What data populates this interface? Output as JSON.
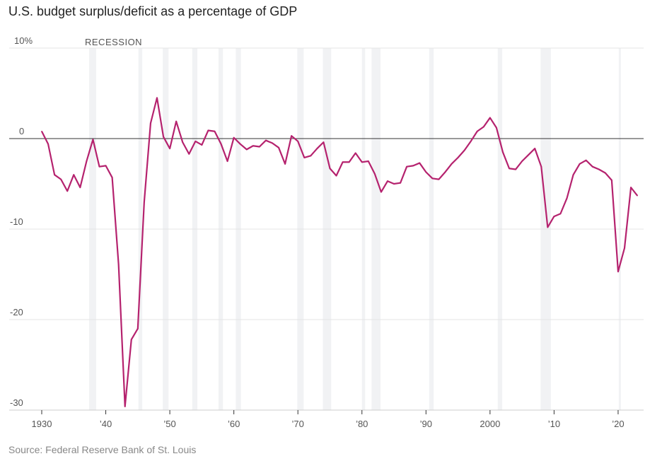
{
  "chart_data": {
    "type": "line",
    "title": "U.S. budget surplus/deficit as a percentage of GDP",
    "source": "Source: Federal Reserve Bank of St. Louis",
    "xlabel": "",
    "ylabel": "",
    "ylim": [
      -30,
      10
    ],
    "xlim": [
      1930,
      2023
    ],
    "y_ticks": [
      {
        "v": 10,
        "label": "10%"
      },
      {
        "v": 0,
        "label": "0"
      },
      {
        "v": -10,
        "label": "-10"
      },
      {
        "v": -20,
        "label": "-20"
      },
      {
        "v": -30,
        "label": "-30"
      }
    ],
    "x_ticks": [
      {
        "v": 1930,
        "label": "1930"
      },
      {
        "v": 1940,
        "label": "’40"
      },
      {
        "v": 1950,
        "label": "’50"
      },
      {
        "v": 1960,
        "label": "’60"
      },
      {
        "v": 1970,
        "label": "’70"
      },
      {
        "v": 1980,
        "label": "’80"
      },
      {
        "v": 1990,
        "label": "’90"
      },
      {
        "v": 2000,
        "label": "2000"
      },
      {
        "v": 2010,
        "label": "’10"
      },
      {
        "v": 2020,
        "label": "’20"
      }
    ],
    "recession_label": "RECESSION",
    "recessions": [
      [
        1937.4,
        1938.5
      ],
      [
        1945.1,
        1945.7
      ],
      [
        1948.9,
        1949.8
      ],
      [
        1953.5,
        1954.3
      ],
      [
        1957.6,
        1958.3
      ],
      [
        1960.3,
        1961.1
      ],
      [
        1969.9,
        1970.9
      ],
      [
        1973.9,
        1975.2
      ],
      [
        1980.0,
        1980.5
      ],
      [
        1981.5,
        1982.9
      ],
      [
        1990.5,
        1991.2
      ],
      [
        2001.2,
        2001.9
      ],
      [
        2007.9,
        2009.5
      ],
      [
        2020.1,
        2020.3
      ]
    ],
    "series": [
      {
        "name": "Surplus/deficit % of GDP",
        "color": "#b5226e",
        "start_year": 1930,
        "values": [
          0.8,
          -0.6,
          -4.0,
          -4.5,
          -5.8,
          -4.0,
          -5.4,
          -2.5,
          -0.1,
          -3.1,
          -3.0,
          -4.3,
          -13.9,
          -29.6,
          -22.2,
          -21.0,
          -7.0,
          1.7,
          4.5,
          0.2,
          -1.1,
          1.9,
          -0.4,
          -1.7,
          -0.3,
          -0.7,
          0.9,
          0.8,
          -0.6,
          -2.5,
          0.1,
          -0.6,
          -1.2,
          -0.8,
          -0.9,
          -0.2,
          -0.5,
          -1.0,
          -2.8,
          0.3,
          -0.3,
          -2.1,
          -1.9,
          -1.1,
          -0.4,
          -3.3,
          -4.1,
          -2.6,
          -2.6,
          -1.6,
          -2.6,
          -2.5,
          -3.9,
          -5.9,
          -4.7,
          -5.0,
          -4.9,
          -3.1,
          -3.0,
          -2.7,
          -3.7,
          -4.4,
          -4.5,
          -3.7,
          -2.8,
          -2.1,
          -1.3,
          -0.3,
          0.8,
          1.3,
          2.3,
          1.2,
          -1.5,
          -3.3,
          -3.4,
          -2.5,
          -1.8,
          -1.1,
          -3.1,
          -9.8,
          -8.6,
          -8.3,
          -6.6,
          -4.0,
          -2.8,
          -2.4,
          -3.1,
          -3.4,
          -3.8,
          -4.6,
          -14.7,
          -12.1,
          -5.4,
          -6.3
        ]
      }
    ]
  }
}
